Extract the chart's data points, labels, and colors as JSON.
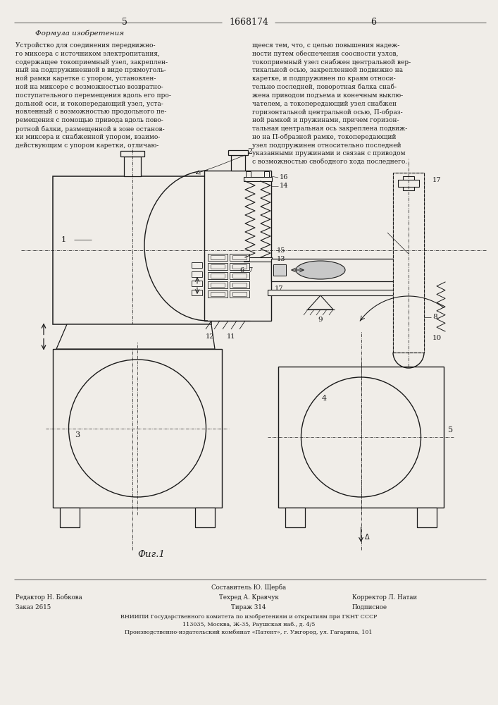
{
  "page_num_left": "5",
  "page_num_center": "1668174",
  "page_num_right": "6",
  "title_left": "Формула изобретения",
  "left_lines": [
    "Устройство для соединения передвижно-",
    "го миксера с источником электропитания,",
    "содержащее токоприемный узел, закреплен-",
    "ный на подпружиненной в виде прямоуголь-",
    "ной рамки каретке с упором, установлен-",
    "ной на миксере с возможностью возвратно-",
    "поступательного перемещения вдоль его про-",
    "дольной оси, и токопередающий узел, уста-",
    "новленный с возможностью продольного пе-",
    "ремещения с помощью привода вдоль пово-",
    "ротной балки, размещенной в зоне останов-",
    "ки миксера и снабженной упором, взаимо-",
    "действующим с упором каретки, отличаю-"
  ],
  "right_lines": [
    "щееся тем, что, с целью повышения надеж-",
    "ности путем обеспечения соосности узлов,",
    "токоприемный узел снабжен центральной вер-",
    "тикальной осью, закрепленной подвижно на",
    "каретке, и подпружинен по краям относи-",
    "тельно последней, поворотная балка снаб-",
    "жена приводом подъема и конечным выклю-",
    "чателем, а токопередающий узел снабжен",
    "горизонтальной центральной осью, П-образ-",
    "ной рамкой и пружинами, причем горизон-",
    "тальная центральная ось закреплена подвиж-",
    "но на П-образной рамке, токопередающий",
    "узел подпружинен относительно последней",
    "указанными пружинами и связан с приводом",
    "с возможностью свободного хода последнего."
  ],
  "fig_caption": "Фиг.1",
  "footer_composer": "Составитель Ю. Щерба",
  "footer_editor": "Редактор Н. Бобкова",
  "footer_tech": "Техред А. Кравчук",
  "footer_corrector": "Корректор Л. Натаи",
  "footer_order": "Заказ 2615",
  "footer_circulation": "Тираж 314",
  "footer_subscription": "Подписное",
  "footer_vnipi": "ВНИИПИ Государственного комитета по изобретениям и открытиям при ГКНТ СССР",
  "footer_address": "113035, Москва, Ж-35, Раушская наб., д. 4/5",
  "footer_production": "Производственно-издательский комбинат «Патент», г. Ужгород, ул. Гагарина, 101",
  "bg_color": "#f0ede8",
  "line_color": "#1a1a1a",
  "text_color": "#1a1a1a"
}
